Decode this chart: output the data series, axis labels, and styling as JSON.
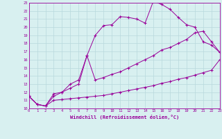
{
  "xlabel": "Windchill (Refroidissement éolien,°C)",
  "bg_color": "#d8f0f0",
  "grid_color": "#b8d8dc",
  "line_color": "#990099",
  "xmin": 0,
  "xmax": 23,
  "ymin": 10,
  "ymax": 23,
  "line1_x": [
    0,
    1,
    2,
    3,
    4,
    5,
    6,
    7,
    8,
    9,
    10,
    11,
    12,
    13,
    14,
    15,
    16,
    17,
    18,
    19,
    20,
    21,
    22,
    23
  ],
  "line1_y": [
    11.5,
    10.5,
    10.3,
    11.0,
    11.1,
    11.2,
    11.3,
    11.4,
    11.5,
    11.6,
    11.8,
    12.0,
    12.2,
    12.4,
    12.6,
    12.8,
    13.1,
    13.3,
    13.6,
    13.8,
    14.1,
    14.4,
    14.7,
    16.0
  ],
  "line2_x": [
    0,
    1,
    2,
    3,
    4,
    5,
    6,
    7,
    8,
    9,
    10,
    11,
    12,
    13,
    14,
    15,
    16,
    17,
    18,
    19,
    20,
    21,
    22,
    23
  ],
  "line2_y": [
    11.5,
    10.5,
    10.3,
    11.5,
    12.0,
    12.5,
    13.0,
    16.5,
    13.5,
    13.8,
    14.2,
    14.5,
    15.0,
    15.5,
    16.0,
    16.5,
    17.2,
    17.5,
    18.0,
    18.5,
    19.3,
    19.5,
    18.2,
    16.9
  ],
  "line3_x": [
    0,
    1,
    2,
    3,
    4,
    5,
    6,
    7,
    8,
    9,
    10,
    11,
    12,
    13,
    14,
    15,
    16,
    17,
    18,
    19,
    20,
    21,
    22,
    23
  ],
  "line3_y": [
    11.5,
    10.5,
    10.3,
    11.8,
    12.0,
    13.0,
    13.5,
    16.5,
    19.0,
    20.2,
    20.3,
    21.3,
    21.2,
    21.0,
    20.5,
    23.2,
    22.8,
    22.2,
    21.2,
    20.3,
    20.0,
    18.2,
    17.8,
    16.9
  ]
}
